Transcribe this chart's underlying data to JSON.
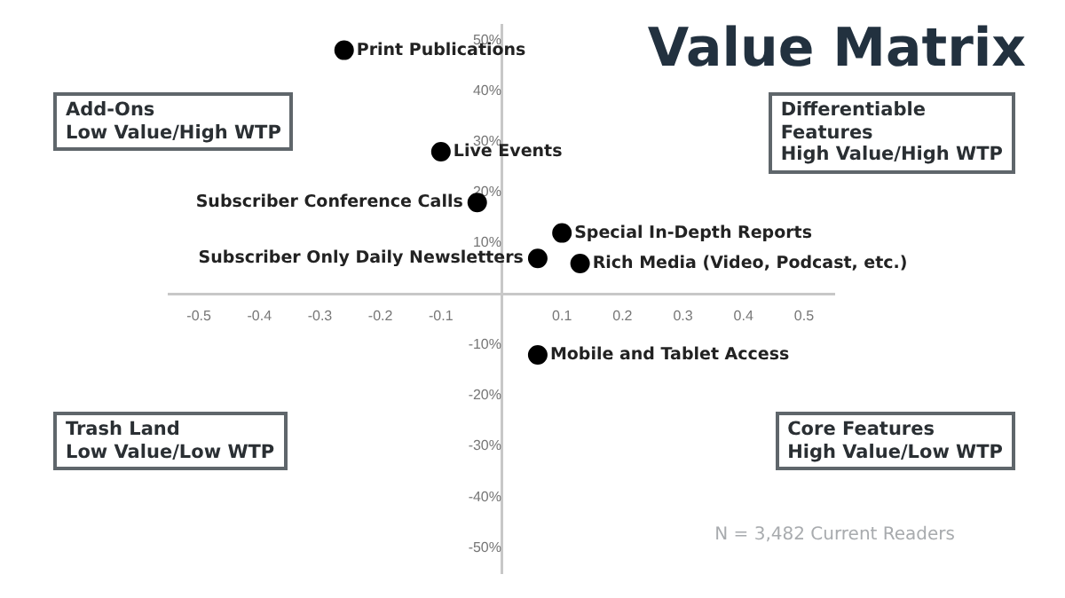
{
  "chart_data": {
    "type": "scatter",
    "title": "Value Matrix",
    "xlim": [
      -0.55,
      0.55
    ],
    "xticks": [
      -0.5,
      -0.4,
      -0.3,
      -0.2,
      -0.1,
      0.1,
      0.2,
      0.3,
      0.4,
      0.5
    ],
    "ylim": [
      -55,
      53
    ],
    "yticks": [
      {
        "value": -50,
        "label": "-50%"
      },
      {
        "value": -40,
        "label": "-40%"
      },
      {
        "value": -30,
        "label": "-30%"
      },
      {
        "value": -20,
        "label": "-20%"
      },
      {
        "value": -10,
        "label": "-10%"
      },
      {
        "value": 10,
        "label": "10%"
      },
      {
        "value": 20,
        "label": "20%"
      },
      {
        "value": 30,
        "label": "30%"
      },
      {
        "value": 40,
        "label": "40%"
      },
      {
        "value": 50,
        "label": "50%"
      }
    ],
    "grid": false,
    "legend": false,
    "marker": "circle",
    "series": [
      {
        "name": "Print Publications",
        "color": "#000000",
        "x": [
          -0.26
        ],
        "values": [
          48
        ]
      },
      {
        "name": "Live Events",
        "color": "#000000",
        "x": [
          -0.1
        ],
        "values": [
          28
        ]
      },
      {
        "name": "Subscriber Conference Calls",
        "color": "#000000",
        "x": [
          -0.04
        ],
        "values": [
          18
        ]
      },
      {
        "name": "Special In-Depth Reports",
        "color": "#000000",
        "x": [
          0.1
        ],
        "values": [
          12
        ]
      },
      {
        "name": "Subscriber Only Daily Newsletters",
        "color": "#000000",
        "x": [
          0.06
        ],
        "values": [
          7
        ]
      },
      {
        "name": "Rich Media (Video, Podcast, etc.)",
        "color": "#000000",
        "x": [
          0.13
        ],
        "values": [
          6
        ]
      },
      {
        "name": "Mobile and Tablet Access",
        "color": "#000000",
        "x": [
          0.06
        ],
        "values": [
          -12
        ]
      }
    ],
    "annotations": [
      "Add-Ons\nLow Value/High WTP",
      "Differentiable\nFeatures\nHigh Value/High WTP",
      "Trash Land\nLow Value/Low WTP",
      "Core Features\nHigh Value/Low WTP",
      "N = 3,482 Current Readers"
    ]
  }
}
